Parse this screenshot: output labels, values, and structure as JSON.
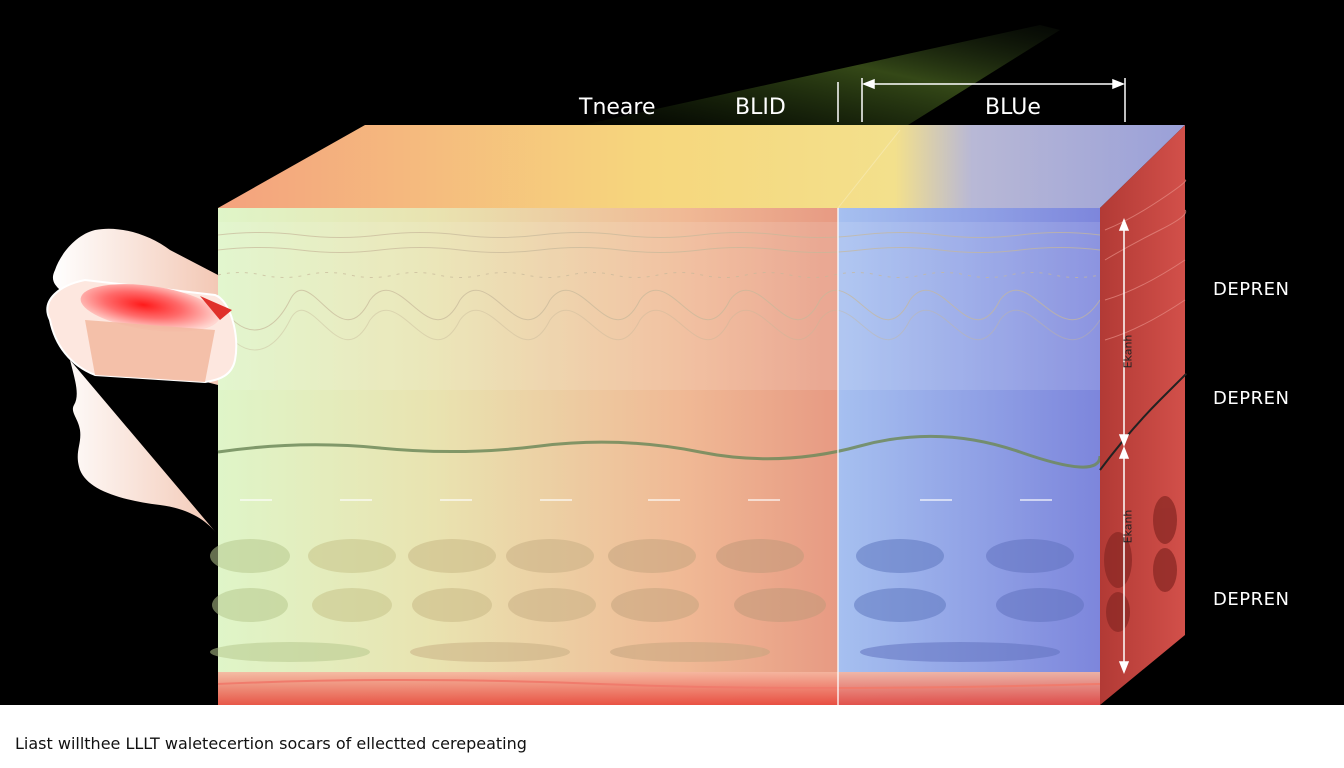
{
  "labels": {
    "top": [
      "Tneare",
      "BLID",
      "BLUe"
    ],
    "side": [
      "DEPREN",
      "DEPREN",
      "DEPREN"
    ],
    "vertical": [
      "Ekanh",
      "Ekanh"
    ]
  },
  "caption": "Liast willthee LLLT waletecertion socars of ellectted cerepeating",
  "colors": {
    "background": "#000000",
    "band_green": "#d9f2c4",
    "band_peach": "#f2b38a",
    "band_blue": "#8fa2e6",
    "side_red": "#c8413a",
    "emitter_red": "#ff3030"
  },
  "icons": {
    "head": "head-profile-icon",
    "emitter": "laser-emitter-icon",
    "dimension_arrow": "dimension-arrow-icon"
  }
}
